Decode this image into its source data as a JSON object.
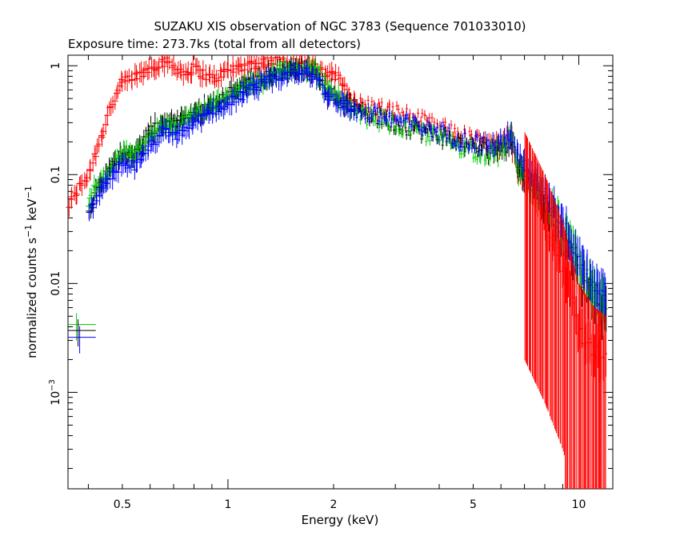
{
  "chart_data": {
    "type": "scatter",
    "title": "SUZAKU XIS observation of NGC 3783 (Sequence 701033010)",
    "subtitle": "Exposure time: 273.7ks (total from all detectors)",
    "xlabel": "Energy (keV)",
    "ylabel": "normalized counts s",
    "ylabel_sup1": "−1",
    "ylabel_mid": " keV",
    "ylabel_sup2": "−1",
    "x_scale": "log",
    "y_scale": "log",
    "xlim": [
      0.35,
      12.5
    ],
    "ylim": [
      0.00013,
      1.25
    ],
    "grid": false,
    "x_ticks": [
      {
        "value": 0.5,
        "label": "0.5"
      },
      {
        "value": 1,
        "label": "1"
      },
      {
        "value": 2,
        "label": "2"
      },
      {
        "value": 5,
        "label": "5"
      },
      {
        "value": 10,
        "label": "10"
      }
    ],
    "y_ticks": [
      {
        "value": 1,
        "label": "1",
        "sup": ""
      },
      {
        "value": 0.1,
        "label": "0.1",
        "sup": ""
      },
      {
        "value": 0.01,
        "label": "0.01",
        "sup": ""
      },
      {
        "value": 0.001,
        "label": "10",
        "sup": "−3"
      }
    ],
    "series": [
      {
        "color": "#ff0000",
        "points": [
          [
            0.35,
            0.05
          ],
          [
            0.37,
            0.07
          ],
          [
            0.4,
            0.1
          ],
          [
            0.43,
            0.2
          ],
          [
            0.46,
            0.4
          ],
          [
            0.5,
            0.7
          ],
          [
            0.55,
            0.8
          ],
          [
            0.6,
            0.95
          ],
          [
            0.65,
            1.1
          ],
          [
            0.7,
            1.0
          ],
          [
            0.75,
            0.85
          ],
          [
            0.8,
            0.95
          ],
          [
            0.85,
            0.85
          ],
          [
            0.9,
            0.75
          ],
          [
            1.0,
            0.9
          ],
          [
            1.1,
            1.0
          ],
          [
            1.3,
            1.1
          ],
          [
            1.5,
            1.1
          ],
          [
            1.7,
            1.0
          ],
          [
            1.9,
            0.85
          ],
          [
            2.1,
            0.75
          ],
          [
            2.3,
            0.45
          ],
          [
            2.6,
            0.42
          ],
          [
            3.0,
            0.38
          ],
          [
            3.5,
            0.32
          ],
          [
            4.0,
            0.27
          ],
          [
            4.5,
            0.24
          ],
          [
            5.0,
            0.21
          ],
          [
            5.5,
            0.19
          ],
          [
            6.0,
            0.18
          ],
          [
            6.4,
            0.22
          ],
          [
            6.7,
            0.12
          ],
          [
            7.0,
            0.1
          ],
          [
            7.5,
            0.07
          ],
          [
            8.0,
            0.04
          ],
          [
            8.5,
            0.025
          ],
          [
            9.0,
            0.015
          ],
          [
            9.5,
            0.008
          ],
          [
            10.0,
            0.004
          ],
          [
            10.5,
            0.003
          ],
          [
            11.0,
            0.0025
          ],
          [
            12.0,
            0.002
          ]
        ]
      },
      {
        "color": "#000000",
        "points": [
          [
            0.4,
            0.04
          ],
          [
            0.42,
            0.07
          ],
          [
            0.45,
            0.1
          ],
          [
            0.5,
            0.16
          ],
          [
            0.55,
            0.16
          ],
          [
            0.6,
            0.25
          ],
          [
            0.65,
            0.3
          ],
          [
            0.7,
            0.3
          ],
          [
            0.8,
            0.36
          ],
          [
            0.9,
            0.45
          ],
          [
            1.0,
            0.55
          ],
          [
            1.1,
            0.65
          ],
          [
            1.3,
            0.8
          ],
          [
            1.5,
            0.9
          ],
          [
            1.7,
            0.92
          ],
          [
            1.8,
            0.85
          ],
          [
            1.9,
            0.6
          ],
          [
            2.1,
            0.5
          ],
          [
            2.3,
            0.38
          ],
          [
            2.6,
            0.35
          ],
          [
            3.0,
            0.3
          ],
          [
            3.5,
            0.26
          ],
          [
            4.0,
            0.23
          ],
          [
            4.5,
            0.2
          ],
          [
            5.0,
            0.18
          ],
          [
            5.5,
            0.17
          ],
          [
            6.0,
            0.17
          ],
          [
            6.4,
            0.22
          ],
          [
            6.7,
            0.12
          ],
          [
            7.0,
            0.1
          ],
          [
            7.5,
            0.08
          ],
          [
            8.0,
            0.055
          ],
          [
            8.5,
            0.04
          ],
          [
            9.0,
            0.028
          ],
          [
            9.5,
            0.02
          ],
          [
            10.0,
            0.013
          ],
          [
            10.5,
            0.009
          ],
          [
            11.0,
            0.007
          ],
          [
            12.0,
            0.005
          ]
        ]
      },
      {
        "color": "#00cc00",
        "points": [
          [
            0.4,
            0.05
          ],
          [
            0.42,
            0.08
          ],
          [
            0.45,
            0.1
          ],
          [
            0.5,
            0.16
          ],
          [
            0.55,
            0.15
          ],
          [
            0.6,
            0.22
          ],
          [
            0.65,
            0.3
          ],
          [
            0.7,
            0.28
          ],
          [
            0.8,
            0.35
          ],
          [
            0.9,
            0.42
          ],
          [
            1.0,
            0.5
          ],
          [
            1.1,
            0.62
          ],
          [
            1.3,
            0.78
          ],
          [
            1.5,
            0.92
          ],
          [
            1.7,
            0.95
          ],
          [
            1.8,
            0.88
          ],
          [
            1.9,
            0.62
          ],
          [
            2.1,
            0.5
          ],
          [
            2.3,
            0.36
          ],
          [
            2.6,
            0.34
          ],
          [
            3.0,
            0.29
          ],
          [
            3.5,
            0.25
          ],
          [
            4.0,
            0.22
          ],
          [
            4.5,
            0.19
          ],
          [
            5.0,
            0.17
          ],
          [
            5.5,
            0.16
          ],
          [
            6.0,
            0.165
          ],
          [
            6.4,
            0.23
          ],
          [
            6.7,
            0.12
          ],
          [
            7.0,
            0.1
          ],
          [
            7.5,
            0.08
          ],
          [
            8.0,
            0.06
          ],
          [
            8.5,
            0.045
          ],
          [
            9.0,
            0.032
          ],
          [
            9.5,
            0.022
          ],
          [
            10.0,
            0.015
          ],
          [
            10.5,
            0.011
          ],
          [
            11.0,
            0.008
          ],
          [
            12.0,
            0.006
          ]
        ]
      },
      {
        "color": "#0000ff",
        "points": [
          [
            0.4,
            0.04
          ],
          [
            0.42,
            0.06
          ],
          [
            0.45,
            0.08
          ],
          [
            0.5,
            0.13
          ],
          [
            0.55,
            0.12
          ],
          [
            0.6,
            0.18
          ],
          [
            0.65,
            0.25
          ],
          [
            0.7,
            0.22
          ],
          [
            0.8,
            0.3
          ],
          [
            0.9,
            0.38
          ],
          [
            1.0,
            0.45
          ],
          [
            1.1,
            0.55
          ],
          [
            1.3,
            0.72
          ],
          [
            1.5,
            0.85
          ],
          [
            1.7,
            0.85
          ],
          [
            1.8,
            0.78
          ],
          [
            1.9,
            0.55
          ],
          [
            2.1,
            0.45
          ],
          [
            2.3,
            0.38
          ],
          [
            2.6,
            0.36
          ],
          [
            3.0,
            0.32
          ],
          [
            3.5,
            0.28
          ],
          [
            4.0,
            0.25
          ],
          [
            4.5,
            0.22
          ],
          [
            5.0,
            0.2
          ],
          [
            5.5,
            0.19
          ],
          [
            6.0,
            0.19
          ],
          [
            6.4,
            0.25
          ],
          [
            6.7,
            0.14
          ],
          [
            7.0,
            0.12
          ],
          [
            7.5,
            0.09
          ],
          [
            8.0,
            0.07
          ],
          [
            8.5,
            0.05
          ],
          [
            9.0,
            0.036
          ],
          [
            9.5,
            0.025
          ],
          [
            10.0,
            0.018
          ],
          [
            10.5,
            0.013
          ],
          [
            11.0,
            0.01
          ],
          [
            12.0,
            0.007
          ]
        ]
      }
    ],
    "bands": [
      {
        "color": "#ff0000",
        "points": [
          [
            7.0,
            0.1
          ],
          [
            8.0,
            0.04
          ],
          [
            9.0,
            0.015
          ],
          [
            10.0,
            0.004
          ],
          [
            11.0,
            0.0025
          ],
          [
            12.0,
            0.002
          ]
        ],
        "lower_frac": 0.02
      }
    ],
    "low_energy_bars": [
      {
        "color": "#00cc00",
        "x": 0.37,
        "y": 0.0042
      },
      {
        "color": "#000000",
        "x": 0.37,
        "y": 0.0037
      },
      {
        "color": "#0000ff",
        "x": 0.37,
        "y": 0.0032
      }
    ]
  }
}
